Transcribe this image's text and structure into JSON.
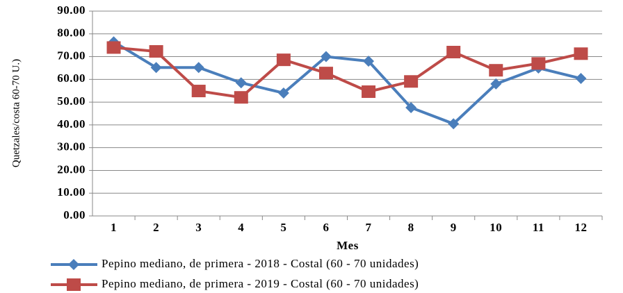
{
  "chart_data": {
    "type": "line",
    "x_label": "Mes",
    "y_label": "Quetzales/costa 60-70 U.)",
    "categories": [
      "1",
      "2",
      "3",
      "4",
      "5",
      "6",
      "7",
      "8",
      "9",
      "10",
      "11",
      "12"
    ],
    "series": [
      {
        "name": "Pepino mediano, de primera - 2018 - Costal (60 - 70 unidades)",
        "color": "#4a7ebb",
        "marker": "diamond",
        "values": [
          76.5,
          65.2,
          65.2,
          58.5,
          54,
          70,
          68,
          47.6,
          40.5,
          58,
          65,
          60.4
        ]
      },
      {
        "name": "Pepino mediano, de primera - 2019 - Costal (60 - 70 unidades)",
        "color": "#be4b48",
        "marker": "square",
        "values": [
          74,
          72.3,
          54.9,
          52.1,
          68.6,
          62.8,
          54.6,
          59.1,
          72,
          64,
          67,
          71.3
        ]
      }
    ],
    "ylim": [
      0,
      90
    ],
    "yticks": [
      {
        "value": 0,
        "label": "0.00"
      },
      {
        "value": 10,
        "label": "10.00"
      },
      {
        "value": 20,
        "label": "20.00"
      },
      {
        "value": 30,
        "label": "30.00"
      },
      {
        "value": 40,
        "label": "40.00"
      },
      {
        "value": 50,
        "label": "50.00"
      },
      {
        "value": 60,
        "label": "60.00"
      },
      {
        "value": 70,
        "label": "70.00"
      },
      {
        "value": 80,
        "label": "80.00"
      },
      {
        "value": 90,
        "label": "90.00"
      }
    ],
    "grid": true,
    "legend": "bottom"
  }
}
